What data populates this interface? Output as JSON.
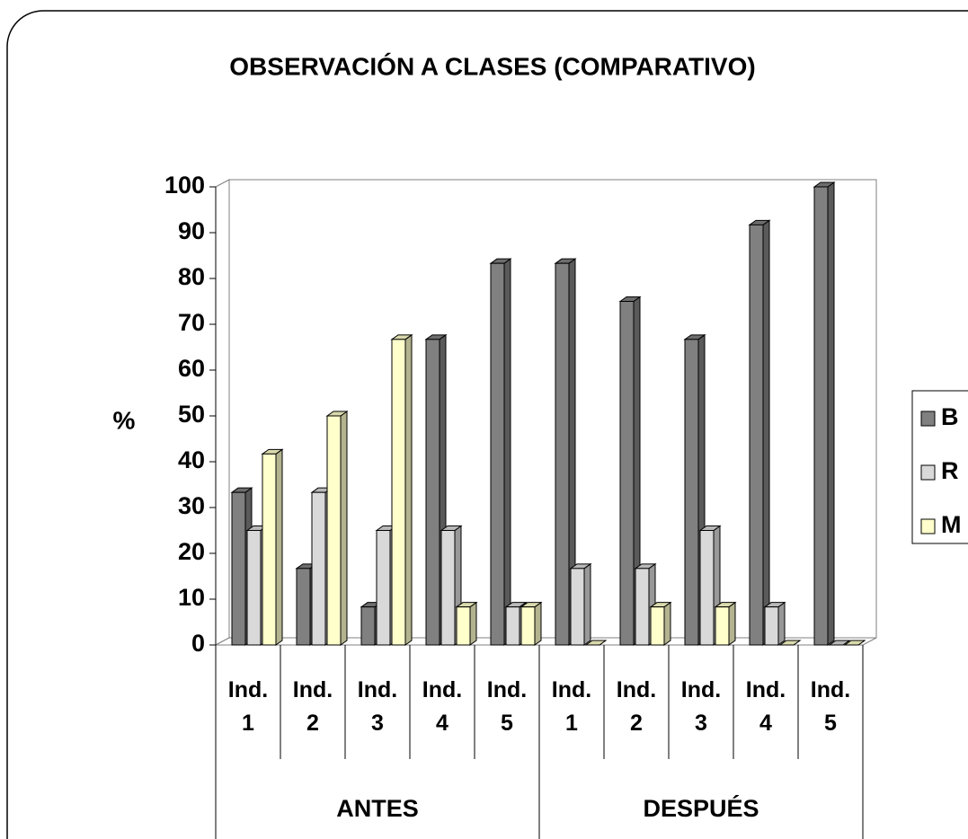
{
  "chart_data": {
    "type": "bar3d",
    "title": "OBSERVACIÓN A CLASES  (COMPARATIVO)",
    "y_label": "%",
    "groups": [
      {
        "name": "ANTES",
        "categories": [
          "Ind. 1",
          "Ind. 2",
          "Ind. 3",
          "Ind. 4",
          "Ind. 5"
        ]
      },
      {
        "name": "DESPUÉS",
        "categories": [
          "Ind. 1",
          "Ind. 2",
          "Ind. 3",
          "Ind. 4",
          "Ind. 5"
        ]
      }
    ],
    "series": [
      {
        "name": "B",
        "color": "#808080",
        "values": [
          33.3,
          16.7,
          8.3,
          66.7,
          83.3,
          83.3,
          75,
          66.7,
          91.7,
          100
        ]
      },
      {
        "name": "R",
        "color": "#d9d9d9",
        "values": [
          25,
          33.3,
          25,
          25,
          8.3,
          16.7,
          16.7,
          25,
          8.3,
          0
        ]
      },
      {
        "name": "M",
        "color": "#ffffcc",
        "values": [
          41.7,
          50,
          66.7,
          8.3,
          8.3,
          0,
          8.3,
          8.3,
          0,
          0
        ]
      }
    ],
    "ylim": [
      0,
      100
    ],
    "yticks": [
      0,
      10,
      20,
      30,
      40,
      50,
      60,
      70,
      80,
      90,
      100
    ],
    "legend": "right"
  }
}
